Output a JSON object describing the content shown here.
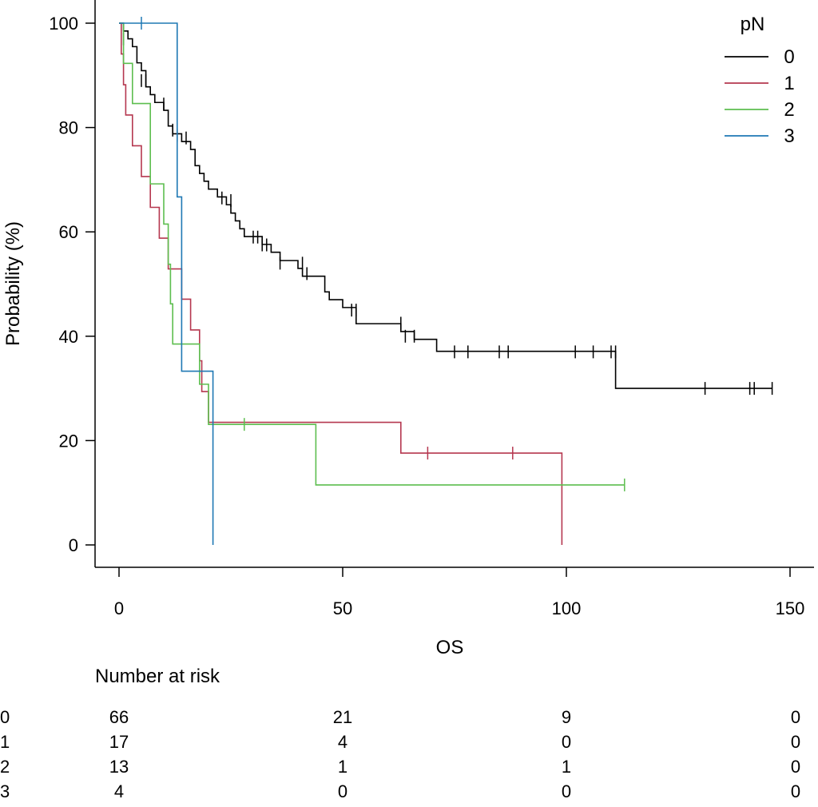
{
  "chart_data": {
    "type": "line",
    "subtype": "kaplan-meier",
    "title": "",
    "xlabel": "OS",
    "ylabel": "Probability (%)",
    "xlim": [
      0,
      150
    ],
    "ylim": [
      0,
      100
    ],
    "x_ticks": [
      0,
      50,
      100,
      150
    ],
    "y_ticks": [
      0,
      20,
      40,
      60,
      80,
      100
    ],
    "grid": false,
    "legend": {
      "title": "pN",
      "position": "top-right",
      "labels": [
        "0",
        "1",
        "2",
        "3"
      ]
    },
    "series": [
      {
        "name": "0",
        "color": "#000000",
        "steps": [
          [
            0,
            100
          ],
          [
            1,
            98.5
          ],
          [
            2,
            97
          ],
          [
            3,
            95.5
          ],
          [
            4,
            92.4
          ],
          [
            5,
            90.9
          ],
          [
            6,
            87.8
          ],
          [
            7,
            86.3
          ],
          [
            8,
            84.8
          ],
          [
            10,
            83.3
          ],
          [
            11,
            80.3
          ],
          [
            12,
            78.8
          ],
          [
            14,
            77.3
          ],
          [
            16,
            75.8
          ],
          [
            17,
            72.7
          ],
          [
            18,
            71.2
          ],
          [
            19,
            69.7
          ],
          [
            20,
            68.2
          ],
          [
            22,
            66.7
          ],
          [
            24,
            65.2
          ],
          [
            25,
            63.6
          ],
          [
            26,
            62.1
          ],
          [
            27,
            60.6
          ],
          [
            28,
            59.1
          ],
          [
            32,
            57.6
          ],
          [
            34,
            56.1
          ],
          [
            36,
            54.5
          ],
          [
            40,
            53
          ],
          [
            41,
            51.5
          ],
          [
            46,
            48.5
          ],
          [
            47,
            47
          ],
          [
            50,
            45.5
          ],
          [
            53,
            42.4
          ],
          [
            63,
            40.9
          ],
          [
            66,
            39.4
          ],
          [
            71,
            37.1
          ],
          [
            111,
            30
          ],
          [
            146,
            30
          ]
        ],
        "censors": [
          [
            1,
            97
          ],
          [
            5,
            89
          ],
          [
            6,
            89
          ],
          [
            10,
            84.5
          ],
          [
            12,
            79.5
          ],
          [
            13,
            78.5
          ],
          [
            15,
            78
          ],
          [
            23,
            66.5
          ],
          [
            25,
            66
          ],
          [
            30,
            59
          ],
          [
            31,
            59
          ],
          [
            32,
            57.5
          ],
          [
            33,
            57.5
          ],
          [
            36,
            54
          ],
          [
            41,
            54
          ],
          [
            42,
            52
          ],
          [
            52,
            45
          ],
          [
            53,
            45
          ],
          [
            63,
            42.5
          ],
          [
            64,
            40
          ],
          [
            66,
            40
          ],
          [
            75,
            37
          ],
          [
            78,
            37
          ],
          [
            85,
            37
          ],
          [
            87,
            37
          ],
          [
            102,
            37
          ],
          [
            106,
            37
          ],
          [
            110,
            37
          ],
          [
            111,
            37
          ],
          [
            131,
            30
          ],
          [
            141,
            30
          ],
          [
            142,
            30
          ],
          [
            146,
            30
          ]
        ]
      },
      {
        "name": "1",
        "color": "#B5374F",
        "steps": [
          [
            0,
            100
          ],
          [
            0.5,
            94.1
          ],
          [
            1,
            88.2
          ],
          [
            1.5,
            82.4
          ],
          [
            3,
            76.5
          ],
          [
            5,
            70.6
          ],
          [
            7,
            64.7
          ],
          [
            9,
            58.8
          ],
          [
            11,
            52.9
          ],
          [
            14,
            47.1
          ],
          [
            16,
            41.2
          ],
          [
            18,
            35.3
          ],
          [
            18.5,
            29.4
          ],
          [
            20,
            23.5
          ],
          [
            63,
            17.6
          ],
          [
            99,
            0
          ]
        ],
        "censors": [
          [
            69,
            17.6
          ],
          [
            88,
            17.6
          ]
        ]
      },
      {
        "name": "2",
        "color": "#5DBE4F",
        "steps": [
          [
            0,
            100
          ],
          [
            1,
            92.3
          ],
          [
            3,
            84.6
          ],
          [
            7,
            69.2
          ],
          [
            10,
            61.5
          ],
          [
            11,
            53.8
          ],
          [
            11.5,
            46.2
          ],
          [
            12,
            38.5
          ],
          [
            18,
            30.8
          ],
          [
            20,
            23.1
          ],
          [
            44,
            11.5
          ],
          [
            113,
            11.5
          ]
        ],
        "censors": [
          [
            28,
            23.1
          ],
          [
            113,
            11.5
          ]
        ]
      },
      {
        "name": "3",
        "color": "#1F78B4",
        "steps": [
          [
            0,
            100
          ],
          [
            13,
            66.7
          ],
          [
            14,
            33.3
          ],
          [
            21,
            0
          ]
        ],
        "censors": [
          [
            5,
            100
          ]
        ]
      }
    ],
    "risk_table": {
      "title": "Number at risk",
      "times": [
        0,
        50,
        100,
        150
      ],
      "rows": [
        {
          "group": "0",
          "values": [
            "66",
            "21",
            "9",
            "0"
          ]
        },
        {
          "group": "1",
          "values": [
            "17",
            "4",
            "0",
            "0"
          ]
        },
        {
          "group": "2",
          "values": [
            "13",
            "1",
            "1",
            "0"
          ]
        },
        {
          "group": "3",
          "values": [
            "4",
            "0",
            "0",
            "0"
          ]
        }
      ]
    }
  }
}
